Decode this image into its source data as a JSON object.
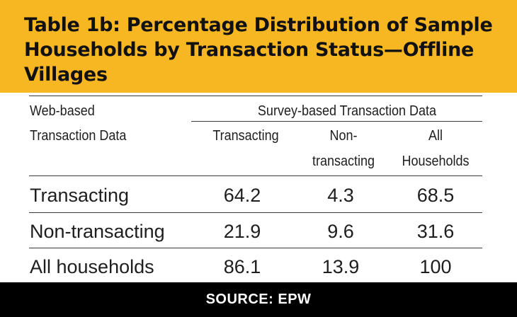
{
  "title": "Table 1b: Percentage Distribution of Sample Households by Transaction Status—Offline Villages",
  "table": {
    "row_header_label_line1": "Web-based",
    "row_header_label_line2": "Transaction Data",
    "group_header": "Survey-based Transaction Data",
    "columns": {
      "transacting": "Transacting",
      "non_transacting_line1": "Non-",
      "non_transacting_line2": "transacting",
      "all_line1": "All",
      "all_line2": "Households"
    },
    "rows": [
      {
        "label": "Transacting",
        "values": [
          "64.2",
          "4.3",
          "68.5"
        ]
      },
      {
        "label": "Non-transacting",
        "values": [
          "21.9",
          "9.6",
          "31.6"
        ]
      },
      {
        "label": "All households",
        "values": [
          "86.1",
          "13.9",
          "100"
        ]
      }
    ]
  },
  "footer": {
    "source": "SOURCE: EPW"
  },
  "colors": {
    "title_band": "#f7b722",
    "footer_band": "#000000",
    "text": "#1e1e1e"
  }
}
